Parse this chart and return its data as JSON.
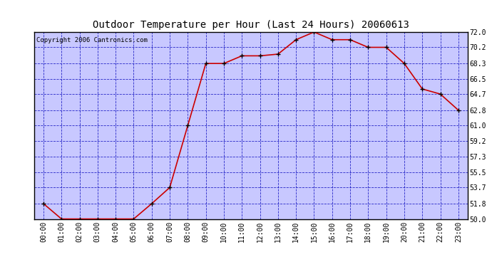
{
  "title": "Outdoor Temperature per Hour (Last 24 Hours) 20060613",
  "copyright_text": "Copyright 2006 Cantronics.com",
  "hours": [
    "00:00",
    "01:00",
    "02:00",
    "03:00",
    "04:00",
    "05:00",
    "06:00",
    "07:00",
    "08:00",
    "09:00",
    "10:00",
    "11:00",
    "12:00",
    "13:00",
    "14:00",
    "15:00",
    "16:00",
    "17:00",
    "18:00",
    "19:00",
    "20:00",
    "21:00",
    "22:00",
    "23:00"
  ],
  "temps": [
    51.8,
    50.0,
    50.0,
    50.0,
    50.0,
    50.0,
    51.8,
    53.7,
    61.0,
    68.3,
    68.3,
    69.2,
    69.2,
    69.4,
    71.1,
    72.0,
    71.1,
    71.1,
    70.2,
    70.2,
    68.3,
    65.3,
    64.7,
    62.8
  ],
  "ylim_min": 50.0,
  "ylim_max": 72.0,
  "yticks": [
    50.0,
    51.8,
    53.7,
    55.5,
    57.3,
    59.2,
    61.0,
    62.8,
    64.7,
    66.5,
    68.3,
    70.2,
    72.0
  ],
  "line_color": "#cc0000",
  "marker_color": "#000000",
  "plot_bg_color": "#c8c8ff",
  "grid_color": "#0000bb",
  "title_color": "#000000",
  "border_color": "#000000",
  "title_fontsize": 10,
  "copyright_fontsize": 6.5,
  "tick_fontsize": 7,
  "ytick_fontsize": 7
}
